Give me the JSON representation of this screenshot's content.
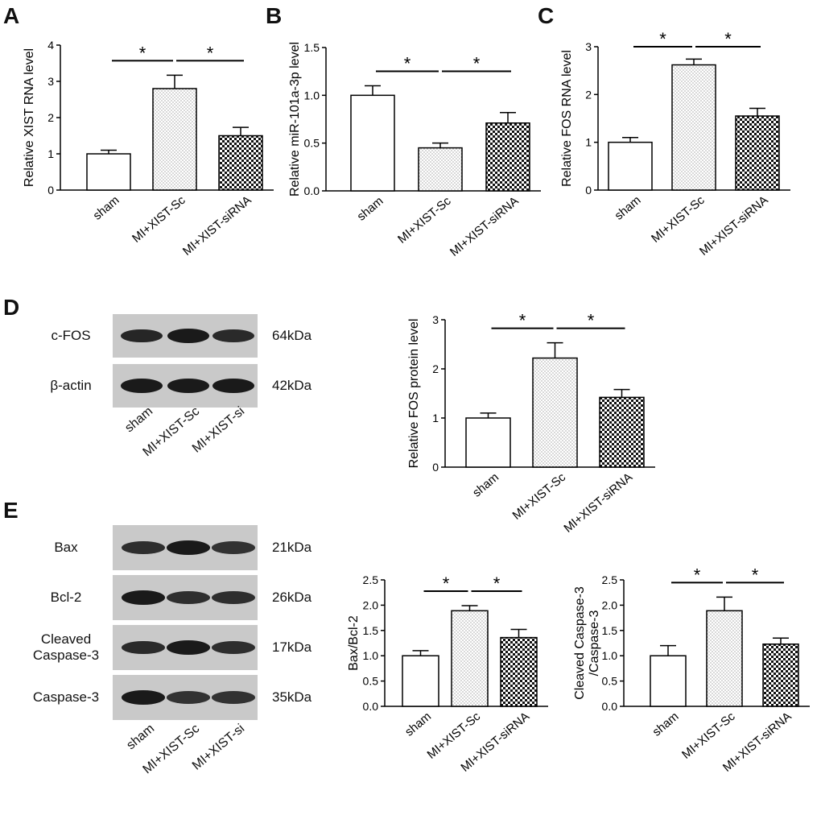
{
  "panels": {
    "A": "A",
    "B": "B",
    "C": "C",
    "D": "D",
    "E": "E"
  },
  "colors": {
    "bar_edge": "#000000",
    "bar_fill_sham": "#ffffff",
    "bar_fill_sc": "dotted",
    "bar_fill_si": "checkerboard",
    "blot_bg": "#c9c9c9",
    "band": "#1a1a1a"
  },
  "chart_data": [
    {
      "id": "A",
      "type": "bar",
      "categories": [
        "sham",
        "MI+XIST-Sc",
        "MI+XIST-siRNA"
      ],
      "values": [
        1.0,
        2.8,
        1.5
      ],
      "errors": [
        0.1,
        0.37,
        0.23
      ],
      "ylabel": "Relative XIST RNA level",
      "ylim": [
        0,
        4
      ],
      "yticks": [
        "0",
        "1",
        "2",
        "3",
        "4"
      ],
      "significance": [
        "*",
        "*"
      ]
    },
    {
      "id": "B",
      "type": "bar",
      "categories": [
        "sham",
        "MI+XIST-Sc",
        "MI+XIST-siRNA"
      ],
      "values": [
        1.0,
        0.45,
        0.71
      ],
      "errors": [
        0.1,
        0.05,
        0.11
      ],
      "ylabel": "Relative miR-101a-3p level",
      "ylim": [
        0,
        1.5
      ],
      "yticks": [
        "0.0",
        "0.5",
        "1.0",
        "1.5"
      ],
      "significance": [
        "*",
        "*"
      ]
    },
    {
      "id": "C",
      "type": "bar",
      "categories": [
        "sham",
        "MI+XIST-Sc",
        "MI+XIST-siRNA"
      ],
      "values": [
        1.0,
        2.62,
        1.55
      ],
      "errors": [
        0.1,
        0.12,
        0.16
      ],
      "ylabel": "Relative FOS RNA level",
      "ylim": [
        0,
        3
      ],
      "yticks": [
        "0",
        "1",
        "2",
        "3"
      ],
      "significance": [
        "*",
        "*"
      ]
    },
    {
      "id": "D",
      "type": "bar",
      "categories": [
        "sham",
        "MI+XIST-Sc",
        "MI+XIST-siRNA"
      ],
      "values": [
        1.0,
        2.22,
        1.42
      ],
      "errors": [
        0.1,
        0.31,
        0.16
      ],
      "ylabel": "Relative FOS protein level",
      "ylim": [
        0,
        3
      ],
      "yticks": [
        "0",
        "1",
        "2",
        "3"
      ],
      "significance": [
        "*",
        "*"
      ]
    },
    {
      "id": "E1",
      "type": "bar",
      "categories": [
        "sham",
        "MI+XIST-Sc",
        "MI+XIST-siRNA"
      ],
      "values": [
        1.0,
        1.89,
        1.36
      ],
      "errors": [
        0.1,
        0.1,
        0.16
      ],
      "ylabel": "Bax/Bcl-2",
      "ylim": [
        0,
        2.5
      ],
      "yticks": [
        "0.0",
        "0.5",
        "1.0",
        "1.5",
        "2.0",
        "2.5"
      ],
      "significance": [
        "*",
        "*"
      ]
    },
    {
      "id": "E2",
      "type": "bar",
      "categories": [
        "sham",
        "MI+XIST-Sc",
        "MI+XIST-siRNA"
      ],
      "values": [
        1.0,
        1.89,
        1.23
      ],
      "errors": [
        0.2,
        0.27,
        0.12
      ],
      "ylabel": "Cleaved Caspase-3\n/Caspase-3",
      "ylim": [
        0,
        2.5
      ],
      "yticks": [
        "0.0",
        "0.5",
        "1.0",
        "1.5",
        "2.0",
        "2.5"
      ],
      "significance": [
        "*",
        "*"
      ]
    }
  ],
  "blot_D": {
    "rows": [
      {
        "label": "c-FOS",
        "kda": "64kDa",
        "intensity": [
          0.85,
          1.0,
          0.8
        ]
      },
      {
        "label": "β-actin",
        "kda": "42kDa",
        "intensity": [
          1.0,
          1.0,
          1.0
        ]
      }
    ],
    "lanes": [
      "sham",
      "MI+XIST-Sc",
      "MI+XIST-si"
    ]
  },
  "blot_E": {
    "rows": [
      {
        "label": "Bax",
        "kda": "21kDa",
        "intensity": [
          0.75,
          1.0,
          0.7
        ]
      },
      {
        "label": "Bcl-2",
        "kda": "26kDa",
        "intensity": [
          1.0,
          0.75,
          0.75
        ]
      },
      {
        "label": "Cleaved\nCaspase-3",
        "kda": "17kDa",
        "intensity": [
          0.8,
          1.0,
          0.75
        ]
      },
      {
        "label": "Caspase-3",
        "kda": "35kDa",
        "intensity": [
          1.0,
          0.7,
          0.7
        ]
      }
    ],
    "lanes": [
      "sham",
      "MI+XIST-Sc",
      "MI+XIST-si"
    ]
  }
}
